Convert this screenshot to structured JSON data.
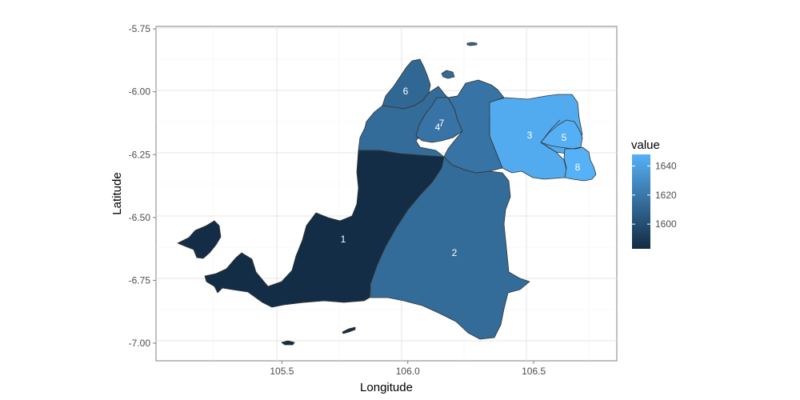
{
  "chart_data": {
    "type": "choropleth-map",
    "x_label": "Longitude",
    "y_label": "Latitude",
    "x_ticks": [
      "105.5",
      "106.0",
      "106.5"
    ],
    "x_tick_values": [
      105.5,
      106.0,
      106.5
    ],
    "y_ticks": [
      "-5.75",
      "-6.00",
      "-6.25",
      "-6.50",
      "-6.75",
      "-7.00"
    ],
    "y_tick_values": [
      -5.75,
      -6.0,
      -6.25,
      -6.5,
      -6.75,
      -7.0
    ],
    "x_range": [
      105.0,
      106.83
    ],
    "y_range": [
      -7.07,
      -5.74
    ],
    "grid": true,
    "legend": {
      "title": "value",
      "ticks": [
        "1640",
        "1620",
        "1600"
      ],
      "tick_values": [
        1640,
        1620,
        1600
      ],
      "range": [
        1583,
        1648
      ],
      "low_color": "#132B43",
      "high_color": "#56B1F7",
      "placement": "right"
    },
    "regions": [
      {
        "label": "1",
        "value": 1584
      },
      {
        "label": "2",
        "value": 1614
      },
      {
        "label": "3",
        "value": 1645
      },
      {
        "label": "4",
        "value": 1618
      },
      {
        "label": "5",
        "value": 1647
      },
      {
        "label": "6",
        "value": 1612
      },
      {
        "label": "7",
        "value": 1618
      },
      {
        "label": "8",
        "value": 1648
      }
    ]
  }
}
